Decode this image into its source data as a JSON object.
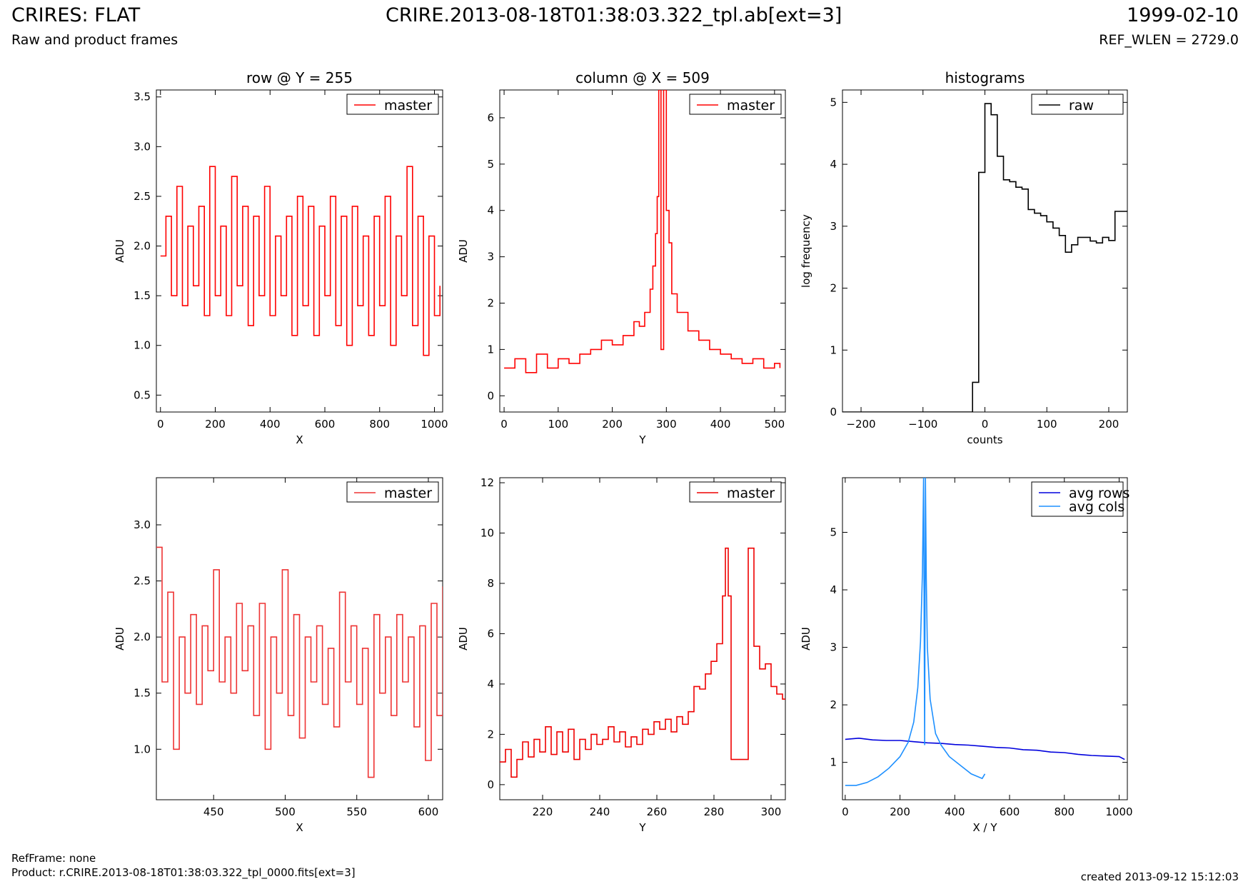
{
  "header": {
    "title": "CRIRES: FLAT",
    "subtitle": "Raw and product frames",
    "filename": "CRIRE.2013-08-18T01:38:03.322_tpl.ab[ext=3]",
    "date": "1999-02-10",
    "ref_wlen": "REF_WLEN = 2729.0"
  },
  "footer": {
    "ref_frame": "RefFrame: none",
    "product": "Product: r.CRIRE.2013-08-18T01:38:03.322_tpl_0000.fits[ext=3]",
    "created": "created 2013-09-12 15:12:03"
  },
  "colors": {
    "master": "#ff0000",
    "master_zoom": "#ee3333",
    "raw": "#000000",
    "avg_rows": "#0000dd",
    "avg_cols": "#1e90ff"
  },
  "chart_data": [
    {
      "type": "line",
      "step": true,
      "title": "row @ Y = 255",
      "xlabel": "X",
      "ylabel": "ADU",
      "xlim": [
        -15,
        1030
      ],
      "ylim": [
        0.33,
        3.57
      ],
      "xticks": [
        0,
        200,
        400,
        600,
        800,
        1000
      ],
      "xticklabels": [
        "0",
        "200",
        "400",
        "600",
        "800",
        "1000"
      ],
      "yticks": [
        0.5,
        1.0,
        1.5,
        2.0,
        2.5,
        3.0,
        3.5
      ],
      "yticklabels": [
        "0.5",
        "1.0",
        "1.5",
        "2.0",
        "2.5",
        "3.0",
        "3.5"
      ],
      "legend_position": "top-right",
      "series": [
        {
          "name": "master",
          "color": "#ff0000",
          "x": [
            0,
            20,
            40,
            60,
            80,
            100,
            120,
            140,
            160,
            180,
            200,
            220,
            240,
            260,
            280,
            300,
            320,
            340,
            360,
            380,
            400,
            420,
            440,
            460,
            480,
            500,
            520,
            540,
            560,
            580,
            600,
            620,
            640,
            660,
            680,
            700,
            720,
            740,
            760,
            780,
            800,
            820,
            840,
            860,
            880,
            900,
            920,
            940,
            960,
            980,
            1000,
            1020
          ],
          "y": [
            1.9,
            2.3,
            1.5,
            2.6,
            1.4,
            2.2,
            1.6,
            2.4,
            1.3,
            2.8,
            1.5,
            2.2,
            1.3,
            2.7,
            1.6,
            2.4,
            1.2,
            2.3,
            1.5,
            2.6,
            1.3,
            2.1,
            1.5,
            2.3,
            1.1,
            2.5,
            1.4,
            2.4,
            1.1,
            2.2,
            1.5,
            2.5,
            1.2,
            2.3,
            1.0,
            2.4,
            1.4,
            2.1,
            1.1,
            2.3,
            1.4,
            2.5,
            1.0,
            2.1,
            1.5,
            2.8,
            1.2,
            2.3,
            0.9,
            2.1,
            1.3,
            1.6
          ]
        }
      ]
    },
    {
      "type": "line",
      "step": true,
      "title": "column @ X = 509",
      "xlabel": "Y",
      "ylabel": "ADU",
      "xlim": [
        -8,
        520
      ],
      "ylim": [
        -0.35,
        6.6
      ],
      "xticks": [
        0,
        100,
        200,
        300,
        400,
        500
      ],
      "xticklabels": [
        "0",
        "100",
        "200",
        "300",
        "400",
        "500"
      ],
      "yticks": [
        0,
        1,
        2,
        3,
        4,
        5,
        6
      ],
      "yticklabels": [
        "0",
        "1",
        "2",
        "3",
        "4",
        "5",
        "6"
      ],
      "legend_position": "top-right",
      "series": [
        {
          "name": "master",
          "color": "#ff0000",
          "x": [
            0,
            20,
            40,
            60,
            80,
            100,
            120,
            140,
            160,
            180,
            200,
            220,
            240,
            250,
            260,
            270,
            275,
            280,
            283,
            286,
            290,
            292,
            295,
            300,
            305,
            310,
            320,
            340,
            360,
            380,
            400,
            420,
            440,
            460,
            480,
            500,
            510
          ],
          "y": [
            0.6,
            0.8,
            0.5,
            0.9,
            0.6,
            0.8,
            0.7,
            0.9,
            1.0,
            1.2,
            1.1,
            1.3,
            1.6,
            1.5,
            1.8,
            2.3,
            2.8,
            3.5,
            4.3,
            6.6,
            1.0,
            1.0,
            6.6,
            4.0,
            3.3,
            2.2,
            1.8,
            1.4,
            1.2,
            1.0,
            0.9,
            0.8,
            0.7,
            0.8,
            0.6,
            0.7,
            0.6
          ]
        }
      ]
    },
    {
      "type": "line",
      "step": true,
      "title": "histograms",
      "xlabel": "counts",
      "ylabel": "log frequency",
      "xlim": [
        -230,
        230
      ],
      "ylim": [
        0,
        5.2
      ],
      "xticks": [
        -200,
        -100,
        0,
        100,
        200
      ],
      "xticklabels": [
        "−200",
        "−100",
        "0",
        "100",
        "200"
      ],
      "yticks": [
        0,
        1,
        2,
        3,
        4,
        5
      ],
      "yticklabels": [
        "0",
        "1",
        "2",
        "3",
        "4",
        "5"
      ],
      "legend_position": "top-right",
      "series": [
        {
          "name": "raw",
          "color": "#000000",
          "x": [
            -230,
            -30,
            -20,
            -10,
            0,
            10,
            20,
            30,
            40,
            50,
            60,
            70,
            80,
            90,
            100,
            110,
            120,
            130,
            140,
            150,
            160,
            170,
            180,
            190,
            200,
            210,
            220,
            230
          ],
          "y": [
            0,
            0,
            0.48,
            3.87,
            4.98,
            4.8,
            4.13,
            3.75,
            3.72,
            3.63,
            3.6,
            3.27,
            3.21,
            3.17,
            3.07,
            2.97,
            2.85,
            2.58,
            2.7,
            2.82,
            2.82,
            2.76,
            2.73,
            2.82,
            2.77,
            3.24,
            3.24,
            3.24
          ]
        }
      ]
    },
    {
      "type": "line",
      "step": true,
      "title": "",
      "xlabel": "X",
      "ylabel": "ADU",
      "xlim": [
        410,
        610
      ],
      "ylim": [
        0.55,
        3.42
      ],
      "xticks": [
        450,
        500,
        550,
        600
      ],
      "xticklabels": [
        "450",
        "500",
        "550",
        "600"
      ],
      "yticks": [
        1.0,
        1.5,
        2.0,
        2.5,
        3.0
      ],
      "yticklabels": [
        "1.0",
        "1.5",
        "2.0",
        "2.5",
        "3.0"
      ],
      "legend_position": "top-right",
      "series": [
        {
          "name": "master",
          "color": "#ee3333",
          "x": [
            410,
            414,
            418,
            422,
            426,
            430,
            434,
            438,
            442,
            446,
            450,
            454,
            458,
            462,
            466,
            470,
            474,
            478,
            482,
            486,
            490,
            494,
            498,
            502,
            506,
            510,
            514,
            518,
            522,
            526,
            530,
            534,
            538,
            542,
            546,
            550,
            554,
            558,
            562,
            566,
            570,
            574,
            578,
            582,
            586,
            590,
            594,
            598,
            602,
            606,
            610
          ],
          "y": [
            2.8,
            1.6,
            2.4,
            1.0,
            2.0,
            1.5,
            2.2,
            1.4,
            2.1,
            1.7,
            2.6,
            1.6,
            2.0,
            1.5,
            2.3,
            1.7,
            2.1,
            1.3,
            2.3,
            1.0,
            2.0,
            1.5,
            2.6,
            1.3,
            2.2,
            1.1,
            2.0,
            1.6,
            2.1,
            1.4,
            1.9,
            1.2,
            2.4,
            1.6,
            2.1,
            1.4,
            1.9,
            0.75,
            2.2,
            1.5,
            2.0,
            1.3,
            2.2,
            1.6,
            2.0,
            1.2,
            2.1,
            0.9,
            2.3,
            1.3,
            2.45
          ]
        }
      ]
    },
    {
      "type": "line",
      "step": true,
      "title": "",
      "xlabel": "Y",
      "ylabel": "ADU",
      "xlim": [
        205,
        305
      ],
      "ylim": [
        -0.6,
        12.2
      ],
      "xticks": [
        220,
        240,
        260,
        280,
        300
      ],
      "xticklabels": [
        "220",
        "240",
        "260",
        "280",
        "300"
      ],
      "yticks": [
        0,
        2,
        4,
        6,
        8,
        10,
        12
      ],
      "yticklabels": [
        "0",
        "2",
        "4",
        "6",
        "8",
        "10",
        "12"
      ],
      "legend_position": "top-right",
      "series": [
        {
          "name": "master",
          "color": "#ee0000",
          "x": [
            205,
            207,
            209,
            211,
            213,
            215,
            217,
            219,
            221,
            223,
            225,
            227,
            229,
            231,
            233,
            235,
            237,
            239,
            241,
            243,
            245,
            247,
            249,
            251,
            253,
            255,
            257,
            259,
            261,
            263,
            265,
            267,
            269,
            271,
            273,
            275,
            277,
            279,
            281,
            283,
            284,
            285,
            286,
            290,
            292,
            294,
            296,
            298,
            300,
            302,
            304,
            305
          ],
          "y": [
            0.9,
            1.4,
            0.3,
            1.0,
            1.7,
            1.1,
            1.8,
            1.3,
            2.3,
            1.2,
            2.1,
            1.3,
            2.2,
            1.0,
            1.8,
            1.4,
            2.0,
            1.6,
            1.8,
            2.3,
            1.7,
            2.1,
            1.5,
            1.9,
            1.6,
            2.2,
            2.0,
            2.5,
            2.2,
            2.6,
            2.1,
            2.7,
            2.4,
            2.9,
            3.9,
            3.8,
            4.4,
            4.9,
            5.6,
            7.5,
            9.4,
            7.5,
            1.0,
            1.0,
            9.4,
            5.5,
            4.6,
            4.8,
            3.9,
            3.6,
            3.4,
            3.4
          ]
        }
      ]
    },
    {
      "type": "line",
      "step": false,
      "title": "",
      "xlabel": "X / Y",
      "ylabel": "ADU",
      "xlim": [
        -10,
        1030
      ],
      "ylim": [
        0.35,
        5.95
      ],
      "xticks": [
        0,
        200,
        400,
        600,
        800,
        1000
      ],
      "xticklabels": [
        "0",
        "200",
        "400",
        "600",
        "800",
        "1000"
      ],
      "yticks": [
        1,
        2,
        3,
        4,
        5
      ],
      "yticklabels": [
        "1",
        "2",
        "3",
        "4",
        "5"
      ],
      "legend_position": "top-right",
      "series": [
        {
          "name": "avg rows",
          "color": "#0000dd",
          "x": [
            0,
            50,
            100,
            150,
            200,
            250,
            300,
            350,
            400,
            450,
            500,
            550,
            600,
            650,
            700,
            750,
            800,
            850,
            900,
            950,
            1000,
            1020
          ],
          "y": [
            1.4,
            1.42,
            1.39,
            1.38,
            1.38,
            1.36,
            1.34,
            1.33,
            1.31,
            1.3,
            1.28,
            1.26,
            1.25,
            1.22,
            1.21,
            1.18,
            1.17,
            1.14,
            1.12,
            1.11,
            1.1,
            1.05
          ]
        },
        {
          "name": "avg cols",
          "color": "#1e90ff",
          "x": [
            0,
            40,
            80,
            120,
            160,
            200,
            230,
            250,
            265,
            275,
            282,
            286,
            290,
            293,
            296,
            300,
            310,
            330,
            350,
            380,
            420,
            460,
            500,
            510
          ],
          "y": [
            0.6,
            0.6,
            0.65,
            0.75,
            0.9,
            1.1,
            1.35,
            1.7,
            2.3,
            3.1,
            4.3,
            5.95,
            1.3,
            5.95,
            4.2,
            3.0,
            2.1,
            1.5,
            1.3,
            1.1,
            0.95,
            0.8,
            0.72,
            0.8
          ]
        }
      ]
    }
  ]
}
